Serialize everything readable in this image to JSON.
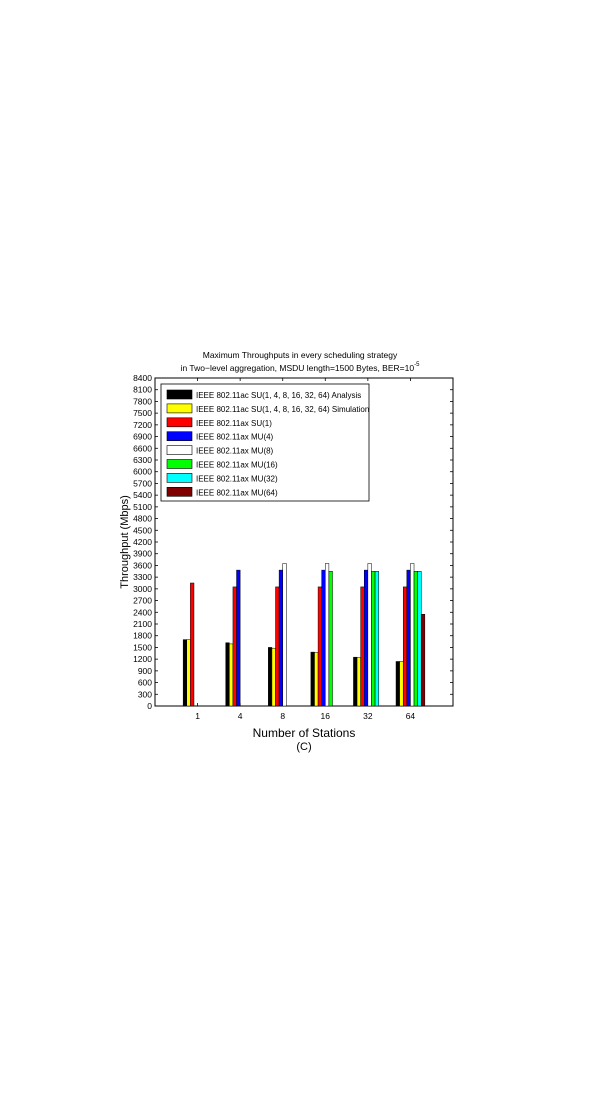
{
  "chart_data": {
    "type": "bar",
    "title_line1": "Maximum Throughputs in every scheduling strategy",
    "title_line2_prefix": "in Two−level aggregation, MSDU length=1500 Bytes, BER=10",
    "title_line2_exponent": "-5",
    "xlabel": "Number of Stations",
    "sublabel": "(C)",
    "ylabel": "Throughput (Mbps)",
    "ylim": [
      0,
      8400
    ],
    "yticks": [
      0,
      300,
      600,
      900,
      1200,
      1500,
      1800,
      2100,
      2400,
      2700,
      3000,
      3300,
      3600,
      3900,
      4200,
      4500,
      4800,
      5100,
      5400,
      5700,
      6000,
      6300,
      6600,
      6900,
      7200,
      7500,
      7800,
      8100,
      8400
    ],
    "categories": [
      "1",
      "4",
      "8",
      "16",
      "32",
      "64"
    ],
    "legend_position": "top-left",
    "grid": false,
    "series": [
      {
        "name": "IEEE 802.11ac SU(1, 4, 8, 16, 32, 64) Analysis",
        "color": "#000000",
        "values": [
          1700,
          1620,
          1500,
          1380,
          1250,
          1140
        ]
      },
      {
        "name": "IEEE 802.11ac SU(1, 4, 8, 16, 32, 64) Simulation",
        "color": "#ffff00",
        "values": [
          1700,
          1590,
          1480,
          1370,
          1240,
          1140
        ]
      },
      {
        "name": "IEEE 802.11ax SU(1)",
        "color": "#ff0000",
        "values": [
          3150,
          3050,
          3050,
          3050,
          3050,
          3050
        ]
      },
      {
        "name": "IEEE 802.11ax MU(4)",
        "color": "#0000ff",
        "values": [
          null,
          3480,
          3480,
          3480,
          3480,
          3480
        ]
      },
      {
        "name": "IEEE 802.11ax MU(8)",
        "color": "#ffffff",
        "values": [
          null,
          null,
          3650,
          3650,
          3650,
          3650
        ]
      },
      {
        "name": "IEEE 802.11ax MU(16)",
        "color": "#00ff00",
        "values": [
          null,
          null,
          null,
          3450,
          3450,
          3450
        ]
      },
      {
        "name": "IEEE 802.11ax MU(32)",
        "color": "#00ffff",
        "values": [
          null,
          null,
          null,
          null,
          3450,
          3450
        ]
      },
      {
        "name": "IEEE 802.11ax MU(64)",
        "color": "#800000",
        "values": [
          null,
          null,
          null,
          null,
          null,
          2350
        ]
      }
    ]
  }
}
